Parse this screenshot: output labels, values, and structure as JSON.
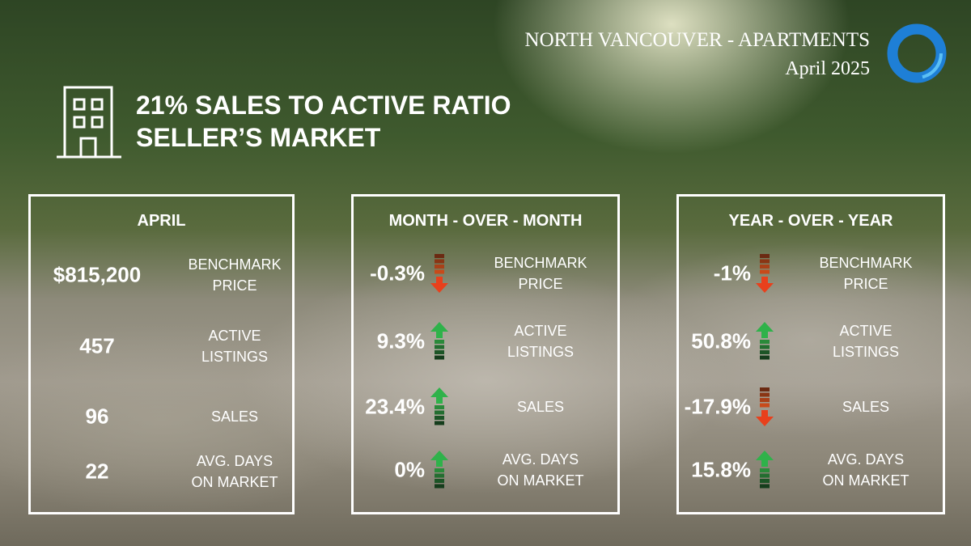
{
  "header": {
    "title": "NORTH VANCOUVER - APARTMENTS",
    "subtitle": "April 2025"
  },
  "headline": {
    "line1": "21% SALES TO ACTIVE RATIO",
    "line2": "SELLER’S MARKET"
  },
  "panels": [
    {
      "title": "APRIL",
      "rows": [
        {
          "value": "$815,200",
          "label": [
            "BENCHMARK",
            "PRICE"
          ]
        },
        {
          "value": "457",
          "label": [
            "ACTIVE",
            "LISTINGS"
          ]
        },
        {
          "value": "96",
          "label": [
            "SALES"
          ]
        },
        {
          "value": "22",
          "label": [
            "AVG. DAYS",
            "ON MARKET"
          ]
        }
      ]
    },
    {
      "title": "MONTH - OVER - MONTH",
      "rows": [
        {
          "value": "-0.3%",
          "direction": "down",
          "label": [
            "BENCHMARK",
            "PRICE"
          ]
        },
        {
          "value": "9.3%",
          "direction": "up",
          "label": [
            "ACTIVE",
            "LISTINGS"
          ]
        },
        {
          "value": "23.4%",
          "direction": "up",
          "label": [
            "SALES"
          ]
        },
        {
          "value": "0%",
          "direction": "up",
          "label": [
            "AVG. DAYS",
            "ON MARKET"
          ]
        }
      ]
    },
    {
      "title": "YEAR - OVER - YEAR",
      "rows": [
        {
          "value": "-1%",
          "direction": "down",
          "label": [
            "BENCHMARK",
            "PRICE"
          ]
        },
        {
          "value": "50.8%",
          "direction": "up",
          "label": [
            "ACTIVE",
            "LISTINGS"
          ]
        },
        {
          "value": "-17.9%",
          "direction": "down",
          "label": [
            "SALES"
          ]
        },
        {
          "value": "15.8%",
          "direction": "up",
          "label": [
            "AVG. DAYS",
            "ON MARKET"
          ]
        }
      ]
    }
  ]
}
